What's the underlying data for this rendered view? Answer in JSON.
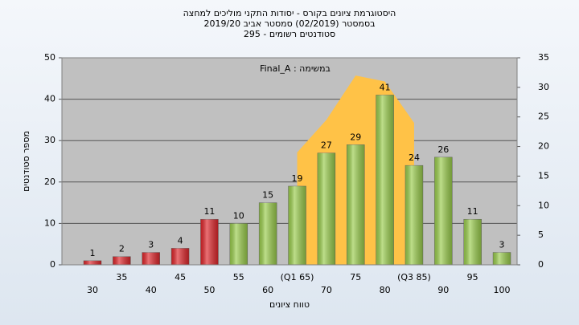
{
  "chart_data": {
    "type": "bar",
    "title": [
      "היסטוגרמת ציונים בקורס - יסודות התקני מוליכים למחצה",
      "בסמסטר (02/2019) סמסטר אביב 2019/20",
      "סטודנטים רשומים - 295"
    ],
    "annotation": "במשימה : Final_A",
    "x_label": "טווח ציונים",
    "y_label": "מספר סטודנטים",
    "categories": [
      "30",
      "35",
      "40",
      "45",
      "50",
      "55",
      "60",
      "(Q1 65)",
      "70",
      "75",
      "80",
      "(Q3 85)",
      "90",
      "95",
      "100"
    ],
    "values": [
      1,
      2,
      3,
      4,
      11,
      10,
      15,
      19,
      27,
      29,
      41,
      24,
      26,
      11,
      3
    ],
    "colors": [
      "#e0262b",
      "#e0262b",
      "#e0262b",
      "#e0262b",
      "#e0262b",
      "#9acd4c",
      "#9acd4c",
      "#9acd4c",
      "#9acd4c",
      "#9acd4c",
      "#9acd4c",
      "#9acd4c",
      "#9acd4c",
      "#9acd4c",
      "#9acd4c"
    ],
    "ylim": [
      0,
      50
    ],
    "yticks": [
      0,
      10,
      20,
      30,
      40,
      50
    ],
    "y2lim": [
      0,
      35
    ],
    "y2ticks": [
      0,
      5,
      10,
      15,
      20,
      25,
      30,
      35
    ],
    "area": {
      "axis": "y2",
      "color": "#ffc247",
      "values": [
        null,
        null,
        null,
        null,
        null,
        null,
        null,
        19,
        24.5,
        32,
        31,
        24,
        null,
        null,
        null
      ]
    },
    "grid": true
  }
}
